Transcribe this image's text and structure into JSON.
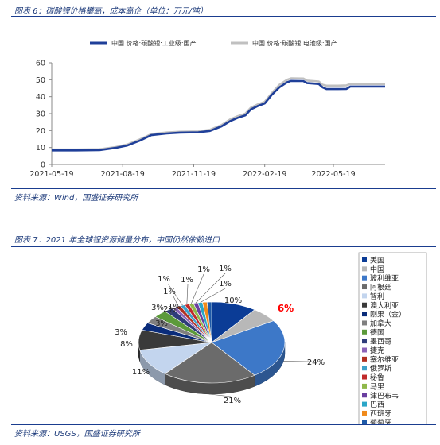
{
  "figure6": {
    "title": "图表 6：碳酸锂价格攀高，成本高企（单位：万元/吨）",
    "source": "资料来源：Wind，国盛证券研究所"
  },
  "figure7": {
    "title": "图表 7：2021 年全球锂资源储量分布，中国仍然依赖进口",
    "source": "资料来源：USGS，国盛证券研究所"
  },
  "chart_data": [
    {
      "type": "line",
      "title": "",
      "xlabel": "",
      "ylabel": "",
      "ylim": [
        0,
        60
      ],
      "yticks": [
        0,
        10,
        20,
        30,
        40,
        50,
        60
      ],
      "xticks": [
        "2021-05-19",
        "2021-08-19",
        "2021-11-19",
        "2022-02-19",
        "2022-05-19"
      ],
      "xlim": [
        "2021-05-19",
        "2022-07-25"
      ],
      "grid": false,
      "legend_position": "top",
      "series": [
        {
          "name": "中国 价格:碳酸锂:工业级:国产",
          "color": "#1f3f99",
          "points": [
            [
              "2021-05-19",
              8.3
            ],
            [
              "2021-06-20",
              8.3
            ],
            [
              "2021-07-20",
              8.5
            ],
            [
              "2021-08-10",
              9.8
            ],
            [
              "2021-08-25",
              11.2
            ],
            [
              "2021-09-10",
              14.0
            ],
            [
              "2021-09-25",
              17.3
            ],
            [
              "2021-10-15",
              18.3
            ],
            [
              "2021-11-01",
              18.8
            ],
            [
              "2021-11-25",
              19.0
            ],
            [
              "2021-12-10",
              19.8
            ],
            [
              "2021-12-25",
              22.5
            ],
            [
              "2022-01-05",
              25.5
            ],
            [
              "2022-01-15",
              27.5
            ],
            [
              "2022-01-25",
              29.0
            ],
            [
              "2022-02-01",
              32.5
            ],
            [
              "2022-02-10",
              34.5
            ],
            [
              "2022-02-19",
              36.0
            ],
            [
              "2022-02-28",
              41.0
            ],
            [
              "2022-03-10",
              45.5
            ],
            [
              "2022-03-20",
              48.5
            ],
            [
              "2022-03-25",
              49.3
            ],
            [
              "2022-04-10",
              49.2
            ],
            [
              "2022-04-15",
              48.0
            ],
            [
              "2022-04-30",
              47.5
            ],
            [
              "2022-05-05",
              45.5
            ],
            [
              "2022-05-10",
              44.5
            ],
            [
              "2022-05-25",
              44.5
            ],
            [
              "2022-06-05",
              44.6
            ],
            [
              "2022-06-10",
              46.0
            ],
            [
              "2022-07-25",
              46.0
            ]
          ]
        },
        {
          "name": "中国 价格:碳酸锂:电池级:国产",
          "color": "#c0c0c0",
          "points": [
            [
              "2021-05-19",
              8.8
            ],
            [
              "2021-06-20",
              8.8
            ],
            [
              "2021-07-20",
              9.0
            ],
            [
              "2021-08-10",
              10.3
            ],
            [
              "2021-08-25",
              11.8
            ],
            [
              "2021-09-10",
              14.8
            ],
            [
              "2021-09-25",
              17.9
            ],
            [
              "2021-10-15",
              18.9
            ],
            [
              "2021-11-01",
              19.3
            ],
            [
              "2021-11-25",
              19.5
            ],
            [
              "2021-12-10",
              20.5
            ],
            [
              "2021-12-25",
              23.3
            ],
            [
              "2022-01-05",
              26.5
            ],
            [
              "2022-01-15",
              28.5
            ],
            [
              "2022-01-25",
              30.0
            ],
            [
              "2022-02-01",
              33.5
            ],
            [
              "2022-02-10",
              35.5
            ],
            [
              "2022-02-19",
              37.0
            ],
            [
              "2022-02-28",
              42.0
            ],
            [
              "2022-03-10",
              47.0
            ],
            [
              "2022-03-20",
              50.0
            ],
            [
              "2022-03-25",
              50.8
            ],
            [
              "2022-04-10",
              50.7
            ],
            [
              "2022-04-15",
              49.5
            ],
            [
              "2022-04-30",
              49.0
            ],
            [
              "2022-05-05",
              47.0
            ],
            [
              "2022-05-10",
              46.5
            ],
            [
              "2022-05-25",
              46.5
            ],
            [
              "2022-06-05",
              46.7
            ],
            [
              "2022-06-10",
              47.5
            ],
            [
              "2022-07-25",
              47.5
            ]
          ]
        }
      ]
    },
    {
      "type": "pie",
      "title": "",
      "legend_position": "right",
      "slices": [
        {
          "label": "美国",
          "value": 10,
          "display": "10%",
          "color": "#0b3c96"
        },
        {
          "label": "中国",
          "value": 6,
          "display": "6%",
          "color": "#b8b8b8",
          "highlight": true
        },
        {
          "label": "玻利维亚",
          "value": 24,
          "display": "24%",
          "color": "#3d78c8"
        },
        {
          "label": "阿根廷",
          "value": 21,
          "display": "21%",
          "color": "#6b6b6b"
        },
        {
          "label": "智利",
          "value": 11,
          "display": "11%",
          "color": "#c3d5ee"
        },
        {
          "label": "澳大利亚",
          "value": 8,
          "display": "8%",
          "color": "#3a3a3a"
        },
        {
          "label": "刚果（金）",
          "value": 3,
          "display": "3%",
          "color": "#0a2c7a"
        },
        {
          "label": "加拿大",
          "value": 3,
          "display": "3%",
          "color": "#7f7f7f"
        },
        {
          "label": "德国",
          "value": 3,
          "display": "3%",
          "color": "#5c9a3a"
        },
        {
          "label": "墨西哥",
          "value": 2,
          "display": "2%",
          "color": "#2f3d7a"
        },
        {
          "label": "捷克",
          "value": 1,
          "display": "1%",
          "color": "#8c63b8"
        },
        {
          "label": "塞尔维亚",
          "value": 1,
          "display": "1%",
          "color": "#b03020"
        },
        {
          "label": "俄罗斯",
          "value": 1,
          "display": "1%",
          "color": "#3fa0c8"
        },
        {
          "label": "秘鲁",
          "value": 1,
          "display": "1%",
          "color": "#c02a2a"
        },
        {
          "label": "马里",
          "value": 1,
          "display": "1%",
          "color": "#8fb84a"
        },
        {
          "label": "津巴布韦",
          "value": 1,
          "display": "1%",
          "color": "#6a3fa0"
        },
        {
          "label": "巴西",
          "value": 1,
          "display": "1%",
          "color": "#2ba6c8"
        },
        {
          "label": "西班牙",
          "value": 1,
          "display": "1%",
          "color": "#f08a1a"
        },
        {
          "label": "葡萄牙",
          "value": 1,
          "display": "1%",
          "color": "#1e5aa8"
        }
      ]
    }
  ]
}
